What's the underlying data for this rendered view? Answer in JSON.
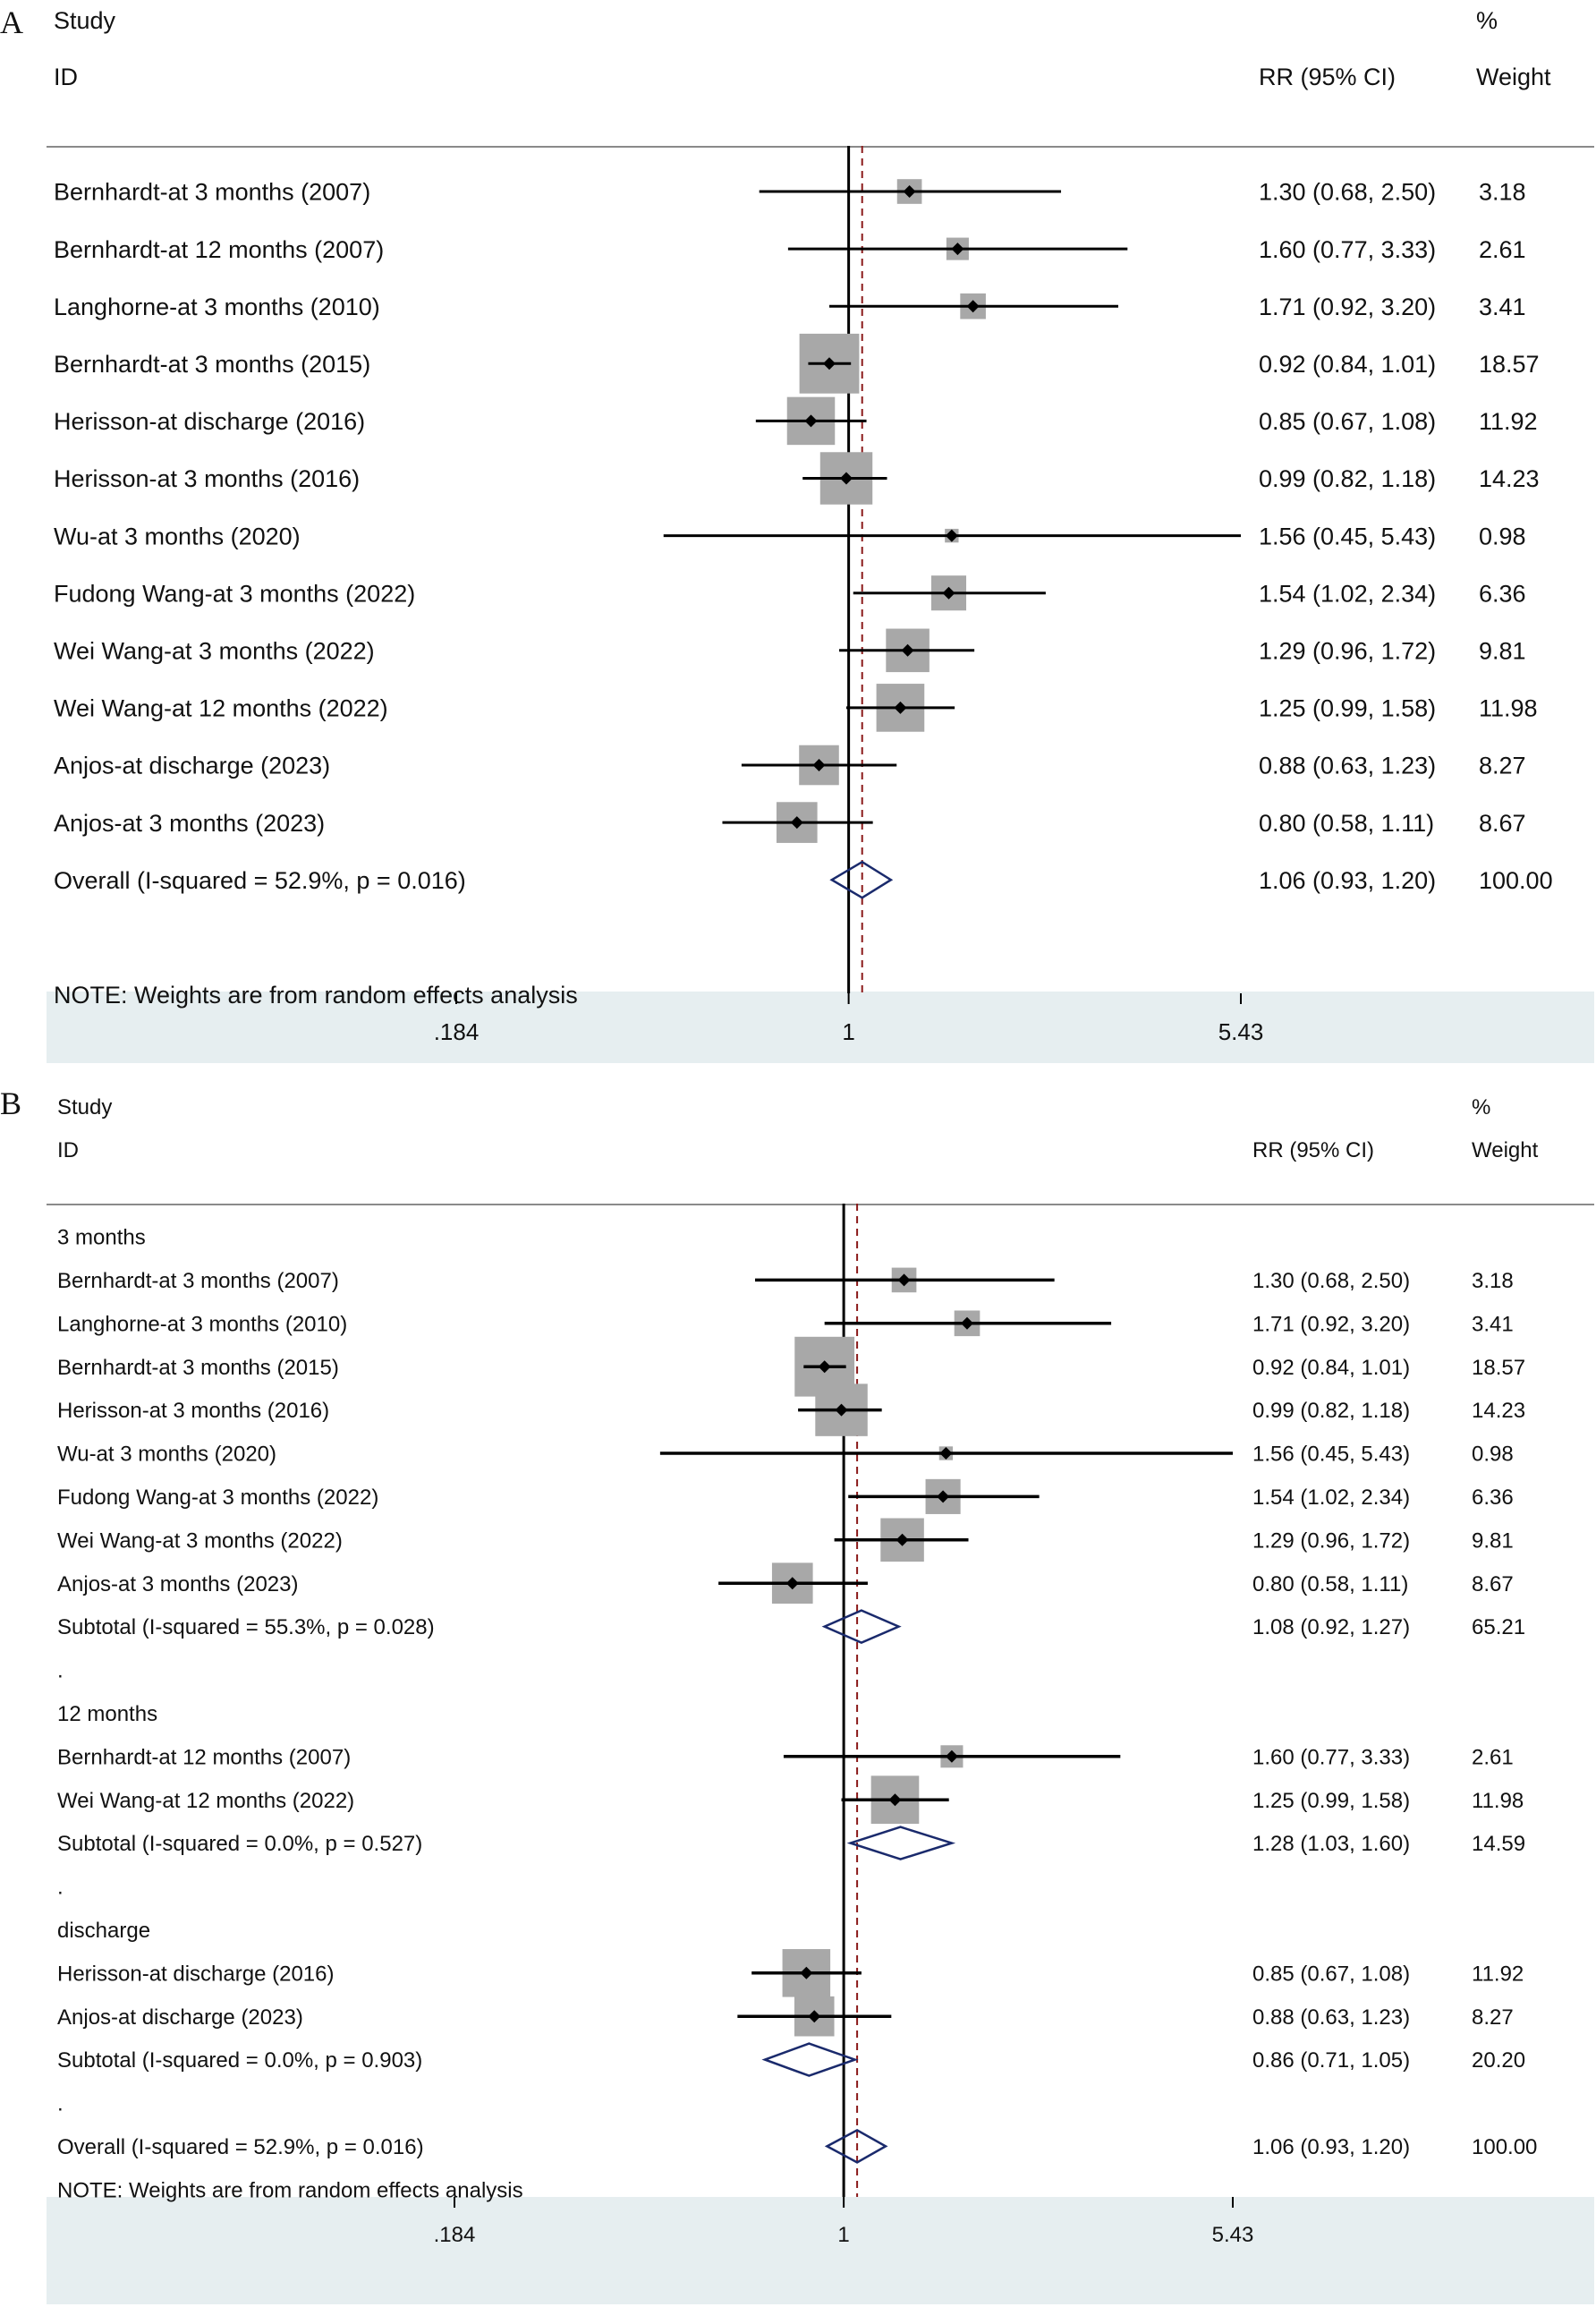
{
  "chart_data": [
    {
      "type": "forest",
      "panel": "A",
      "header": {
        "study": "Study",
        "id": "ID",
        "effect": "RR (95% CI)",
        "pct": "%",
        "weight": "Weight"
      },
      "rows": [
        {
          "kind": "study",
          "label": "Bernhardt-at 3 months (2007)",
          "rr": 1.3,
          "lo": 0.68,
          "hi": 2.5,
          "ci_text": "1.30 (0.68, 2.50)",
          "weight": 3.18,
          "weight_text": "3.18"
        },
        {
          "kind": "study",
          "label": "Bernhardt-at 12 months (2007)",
          "rr": 1.6,
          "lo": 0.77,
          "hi": 3.33,
          "ci_text": "1.60 (0.77, 3.33)",
          "weight": 2.61,
          "weight_text": "2.61"
        },
        {
          "kind": "study",
          "label": "Langhorne-at 3 months (2010)",
          "rr": 1.71,
          "lo": 0.92,
          "hi": 3.2,
          "ci_text": "1.71 (0.92, 3.20)",
          "weight": 3.41,
          "weight_text": "3.41"
        },
        {
          "kind": "study",
          "label": "Bernhardt-at 3 months (2015)",
          "rr": 0.92,
          "lo": 0.84,
          "hi": 1.01,
          "ci_text": "0.92 (0.84, 1.01)",
          "weight": 18.57,
          "weight_text": "18.57"
        },
        {
          "kind": "study",
          "label": "Herisson-at discharge (2016)",
          "rr": 0.85,
          "lo": 0.67,
          "hi": 1.08,
          "ci_text": "0.85 (0.67, 1.08)",
          "weight": 11.92,
          "weight_text": "11.92"
        },
        {
          "kind": "study",
          "label": "Herisson-at 3 months (2016)",
          "rr": 0.99,
          "lo": 0.82,
          "hi": 1.18,
          "ci_text": "0.99 (0.82, 1.18)",
          "weight": 14.23,
          "weight_text": "14.23"
        },
        {
          "kind": "study",
          "label": "Wu-at 3 months (2020)",
          "rr": 1.56,
          "lo": 0.45,
          "hi": 5.43,
          "ci_text": "1.56 (0.45, 5.43)",
          "weight": 0.98,
          "weight_text": "0.98"
        },
        {
          "kind": "study",
          "label": "Fudong Wang-at 3 months (2022)",
          "rr": 1.54,
          "lo": 1.02,
          "hi": 2.34,
          "ci_text": "1.54 (1.02, 2.34)",
          "weight": 6.36,
          "weight_text": "6.36"
        },
        {
          "kind": "study",
          "label": "Wei Wang-at 3 months (2022)",
          "rr": 1.29,
          "lo": 0.96,
          "hi": 1.72,
          "ci_text": "1.29 (0.96, 1.72)",
          "weight": 9.81,
          "weight_text": "9.81"
        },
        {
          "kind": "study",
          "label": "Wei Wang-at 12 months (2022)",
          "rr": 1.25,
          "lo": 0.99,
          "hi": 1.58,
          "ci_text": "1.25 (0.99, 1.58)",
          "weight": 11.98,
          "weight_text": "11.98"
        },
        {
          "kind": "study",
          "label": "Anjos-at discharge (2023)",
          "rr": 0.88,
          "lo": 0.63,
          "hi": 1.23,
          "ci_text": "0.88 (0.63, 1.23)",
          "weight": 8.27,
          "weight_text": "8.27"
        },
        {
          "kind": "study",
          "label": "Anjos-at 3 months (2023)",
          "rr": 0.8,
          "lo": 0.58,
          "hi": 1.11,
          "ci_text": "0.80 (0.58, 1.11)",
          "weight": 8.67,
          "weight_text": "8.67"
        },
        {
          "kind": "overall",
          "label": "Overall  (I-squared = 52.9%, p = 0.016)",
          "rr": 1.06,
          "lo": 0.93,
          "hi": 1.2,
          "ci_text": "1.06 (0.93, 1.20)",
          "weight": 100.0,
          "weight_text": "100.00"
        },
        {
          "kind": "blank"
        },
        {
          "kind": "note",
          "label": "NOTE: Weights are from random effects analysis"
        }
      ],
      "x_scale": "log",
      "ref_line": 1,
      "overall_line": 1.06,
      "xlim": [
        0.184,
        5.43
      ],
      "ticks": [
        {
          "value": 0.184,
          "label": ".184"
        },
        {
          "value": 1,
          "label": "1"
        },
        {
          "value": 5.43,
          "label": "5.43"
        }
      ]
    },
    {
      "type": "forest",
      "panel": "B",
      "header": {
        "study": "Study",
        "id": "ID",
        "effect": "RR (95% CI)",
        "pct": "%",
        "weight": "Weight"
      },
      "rows": [
        {
          "kind": "group",
          "label": "3 months"
        },
        {
          "kind": "study",
          "label": "Bernhardt-at 3 months (2007)",
          "rr": 1.3,
          "lo": 0.68,
          "hi": 2.5,
          "ci_text": "1.30 (0.68, 2.50)",
          "weight": 3.18,
          "weight_text": "3.18"
        },
        {
          "kind": "study",
          "label": "Langhorne-at 3 months (2010)",
          "rr": 1.71,
          "lo": 0.92,
          "hi": 3.2,
          "ci_text": "1.71 (0.92, 3.20)",
          "weight": 3.41,
          "weight_text": "3.41"
        },
        {
          "kind": "study",
          "label": "Bernhardt-at 3 months (2015)",
          "rr": 0.92,
          "lo": 0.84,
          "hi": 1.01,
          "ci_text": "0.92 (0.84, 1.01)",
          "weight": 18.57,
          "weight_text": "18.57"
        },
        {
          "kind": "study",
          "label": "Herisson-at 3 months (2016)",
          "rr": 0.99,
          "lo": 0.82,
          "hi": 1.18,
          "ci_text": "0.99 (0.82, 1.18)",
          "weight": 14.23,
          "weight_text": "14.23"
        },
        {
          "kind": "study",
          "label": "Wu-at 3 months (2020)",
          "rr": 1.56,
          "lo": 0.45,
          "hi": 5.43,
          "ci_text": "1.56 (0.45, 5.43)",
          "weight": 0.98,
          "weight_text": "0.98"
        },
        {
          "kind": "study",
          "label": "Fudong Wang-at 3 months (2022)",
          "rr": 1.54,
          "lo": 1.02,
          "hi": 2.34,
          "ci_text": "1.54 (1.02, 2.34)",
          "weight": 6.36,
          "weight_text": "6.36"
        },
        {
          "kind": "study",
          "label": "Wei Wang-at 3 months (2022)",
          "rr": 1.29,
          "lo": 0.96,
          "hi": 1.72,
          "ci_text": "1.29 (0.96, 1.72)",
          "weight": 9.81,
          "weight_text": "9.81"
        },
        {
          "kind": "study",
          "label": "Anjos-at 3 months (2023)",
          "rr": 0.8,
          "lo": 0.58,
          "hi": 1.11,
          "ci_text": "0.80 (0.58, 1.11)",
          "weight": 8.67,
          "weight_text": "8.67"
        },
        {
          "kind": "subtotal",
          "label": "Subtotal  (I-squared = 55.3%, p = 0.028)",
          "rr": 1.08,
          "lo": 0.92,
          "hi": 1.27,
          "ci_text": "1.08 (0.92, 1.27)",
          "weight": 65.21,
          "weight_text": "65.21"
        },
        {
          "kind": "dot",
          "label": "."
        },
        {
          "kind": "group",
          "label": "12 months"
        },
        {
          "kind": "study",
          "label": "Bernhardt-at 12 months (2007)",
          "rr": 1.6,
          "lo": 0.77,
          "hi": 3.33,
          "ci_text": "1.60 (0.77, 3.33)",
          "weight": 2.61,
          "weight_text": "2.61"
        },
        {
          "kind": "study",
          "label": "Wei Wang-at 12 months (2022)",
          "rr": 1.25,
          "lo": 0.99,
          "hi": 1.58,
          "ci_text": "1.25 (0.99, 1.58)",
          "weight": 11.98,
          "weight_text": "11.98"
        },
        {
          "kind": "subtotal",
          "label": "Subtotal  (I-squared = 0.0%, p = 0.527)",
          "rr": 1.28,
          "lo": 1.03,
          "hi": 1.6,
          "ci_text": "1.28 (1.03, 1.60)",
          "weight": 14.59,
          "weight_text": "14.59"
        },
        {
          "kind": "dot",
          "label": "."
        },
        {
          "kind": "group",
          "label": "discharge"
        },
        {
          "kind": "study",
          "label": "Herisson-at discharge (2016)",
          "rr": 0.85,
          "lo": 0.67,
          "hi": 1.08,
          "ci_text": "0.85 (0.67, 1.08)",
          "weight": 11.92,
          "weight_text": "11.92"
        },
        {
          "kind": "study",
          "label": "Anjos-at discharge (2023)",
          "rr": 0.88,
          "lo": 0.63,
          "hi": 1.23,
          "ci_text": "0.88 (0.63, 1.23)",
          "weight": 8.27,
          "weight_text": "8.27"
        },
        {
          "kind": "subtotal",
          "label": "Subtotal  (I-squared = 0.0%, p = 0.903)",
          "rr": 0.86,
          "lo": 0.71,
          "hi": 1.05,
          "ci_text": "0.86 (0.71, 1.05)",
          "weight": 20.2,
          "weight_text": "20.20"
        },
        {
          "kind": "dot",
          "label": "."
        },
        {
          "kind": "overall",
          "label": "Overall  (I-squared = 52.9%, p = 0.016)",
          "rr": 1.06,
          "lo": 0.93,
          "hi": 1.2,
          "ci_text": "1.06 (0.93, 1.20)",
          "weight": 100.0,
          "weight_text": "100.00"
        },
        {
          "kind": "note",
          "label": "NOTE: Weights are from random effects analysis"
        }
      ],
      "x_scale": "log",
      "ref_line": 1,
      "overall_line": 1.06,
      "xlim": [
        0.184,
        5.43
      ],
      "ticks": [
        {
          "value": 0.184,
          "label": ".184"
        },
        {
          "value": 1,
          "label": "1"
        },
        {
          "value": 5.43,
          "label": "5.43"
        }
      ]
    }
  ],
  "colors": {
    "ci_line": "#000000",
    "box": "#a8a8a8",
    "diamond": "#1a2a6c",
    "ref_line": "#000000",
    "overall_line": "#8b1a1a",
    "axis_band": "#e6eef0"
  }
}
